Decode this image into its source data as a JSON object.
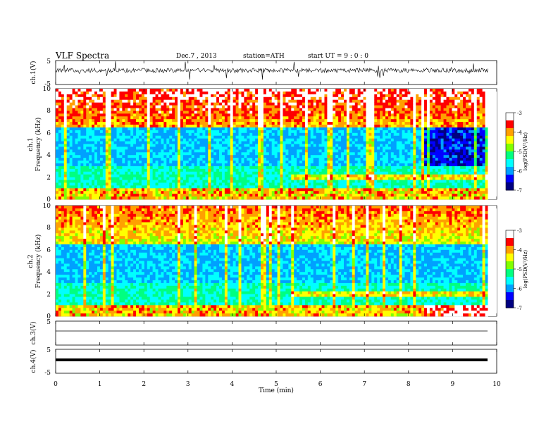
{
  "header": {
    "title": "VLF  Spectra",
    "date": "Dec.7  , 2013",
    "station": "station=ATH",
    "start": "start  UT  =   9  : 0  : 0"
  },
  "chart_data": [
    {
      "type": "line",
      "panel": "ch1-waveform",
      "ylabel": "ch.1(V)",
      "ylim": [
        -5,
        5
      ],
      "yticks": [
        "5",
        "-5"
      ],
      "x_range_min": [
        0,
        9.8
      ],
      "baseline": 0,
      "trace_color": "#000000"
    },
    {
      "type": "heatmap",
      "panel": "ch1-spectrogram",
      "ylabel": "ch.1\nFrequency (kHz)",
      "ylim": [
        0,
        10
      ],
      "yticks": [
        "0",
        "2",
        "4",
        "6",
        "8",
        "10"
      ],
      "colorbar": {
        "label": "log(PSD(V²/Hz)",
        "range": [
          -7,
          -3
        ],
        "ticks": [
          "-3",
          "-4",
          "-5",
          "-6",
          "-7"
        ]
      },
      "x_range_min": [
        0,
        9.8
      ],
      "events_min": [
        {
          "from": 5.3,
          "to": 9.8,
          "change": "band near 2 kHz becomes stronger"
        },
        {
          "from": 8.35,
          "to": 9.8,
          "change": "3–6 kHz band becomes quieter (darker blue)"
        }
      ]
    },
    {
      "type": "heatmap",
      "panel": "ch2-spectrogram",
      "ylabel": "ch.2\nFrequency (kHz)",
      "ylim": [
        0,
        10
      ],
      "yticks": [
        "0",
        "2",
        "4",
        "6",
        "8",
        "10"
      ],
      "colorbar": {
        "label": "log(PSD(V²/Hz)",
        "range": [
          -7,
          -3
        ],
        "ticks": [
          "-3",
          "-4",
          "-5",
          "-6",
          "-7"
        ]
      },
      "x_range_min": [
        0,
        9.8
      ],
      "events_min": [
        {
          "from": 5.3,
          "to": 9.8,
          "change": "band near 2 kHz becomes stronger"
        },
        {
          "from": 8.35,
          "to": 9.8,
          "change": "lowest band near 0.5 kHz intensifies"
        }
      ]
    },
    {
      "type": "line",
      "panel": "ch3-waveform",
      "ylabel": "ch.3(V)",
      "ylim": [
        -5,
        5
      ],
      "yticks": [
        "5"
      ],
      "x_range_min": [
        0,
        9.8
      ],
      "baseline": 0
    },
    {
      "type": "line",
      "panel": "ch4-waveform",
      "ylabel": "ch.4(V)",
      "ylim": [
        -5,
        5
      ],
      "yticks": [
        "5",
        "-5"
      ],
      "x_range_min": [
        0,
        9.8
      ],
      "baseline": 0
    }
  ],
  "xaxis": {
    "label": "Time  (min)",
    "ticks": [
      "0",
      "1",
      "2",
      "3",
      "4",
      "5",
      "6",
      "7",
      "8",
      "9",
      "10"
    ],
    "range": [
      0,
      10
    ]
  },
  "colormap": [
    "#000080",
    "#0000ff",
    "#00a0ff",
    "#00ffff",
    "#00ff80",
    "#80ff00",
    "#ffff00",
    "#ffa000",
    "#ff0000",
    "#ffffff"
  ]
}
